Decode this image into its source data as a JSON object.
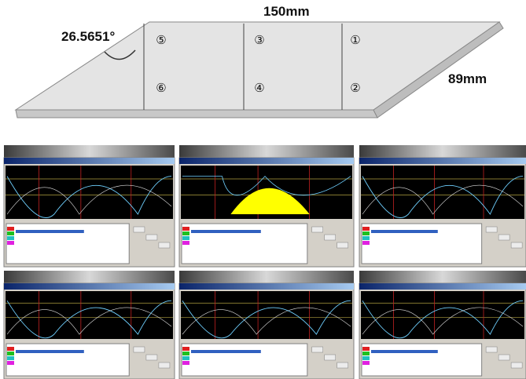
{
  "diagram": {
    "length_label": "150mm",
    "width_label": "89mm",
    "angle_label": "26.5651°",
    "points": [
      "⑤",
      "③",
      "①",
      "⑥",
      "④",
      "②"
    ]
  }
}
